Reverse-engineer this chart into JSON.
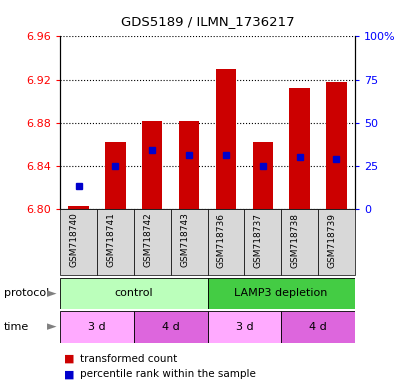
{
  "title": "GDS5189 / ILMN_1736217",
  "samples": [
    "GSM718740",
    "GSM718741",
    "GSM718742",
    "GSM718743",
    "GSM718736",
    "GSM718737",
    "GSM718738",
    "GSM718739"
  ],
  "bar_bottoms": [
    6.8,
    6.8,
    6.8,
    6.8,
    6.8,
    6.8,
    6.8,
    6.8
  ],
  "bar_tops": [
    6.803,
    6.862,
    6.882,
    6.882,
    6.93,
    6.862,
    6.912,
    6.918
  ],
  "blue_dot_y": [
    6.822,
    6.84,
    6.855,
    6.85,
    6.85,
    6.84,
    6.848,
    6.847
  ],
  "ylim_left": [
    6.8,
    6.96
  ],
  "ylim_right": [
    0,
    100
  ],
  "yticks_left": [
    6.8,
    6.84,
    6.88,
    6.92,
    6.96
  ],
  "yticks_right": [
    0,
    25,
    50,
    75,
    100
  ],
  "ytick_right_labels": [
    "0",
    "25",
    "50",
    "75",
    "100%"
  ],
  "bar_color": "#cc0000",
  "dot_color": "#0000cc",
  "protocol_groups": [
    {
      "label": "control",
      "start": 0,
      "end": 4,
      "color": "#bbffbb"
    },
    {
      "label": "LAMP3 depletion",
      "start": 4,
      "end": 8,
      "color": "#44cc44"
    }
  ],
  "time_groups": [
    {
      "label": "3 d",
      "start": 0,
      "end": 2,
      "color": "#ffaaff"
    },
    {
      "label": "4 d",
      "start": 2,
      "end": 4,
      "color": "#dd66dd"
    },
    {
      "label": "3 d",
      "start": 4,
      "end": 6,
      "color": "#ffaaff"
    },
    {
      "label": "4 d",
      "start": 6,
      "end": 8,
      "color": "#dd66dd"
    }
  ],
  "xtick_bg": "#d8d8d8"
}
